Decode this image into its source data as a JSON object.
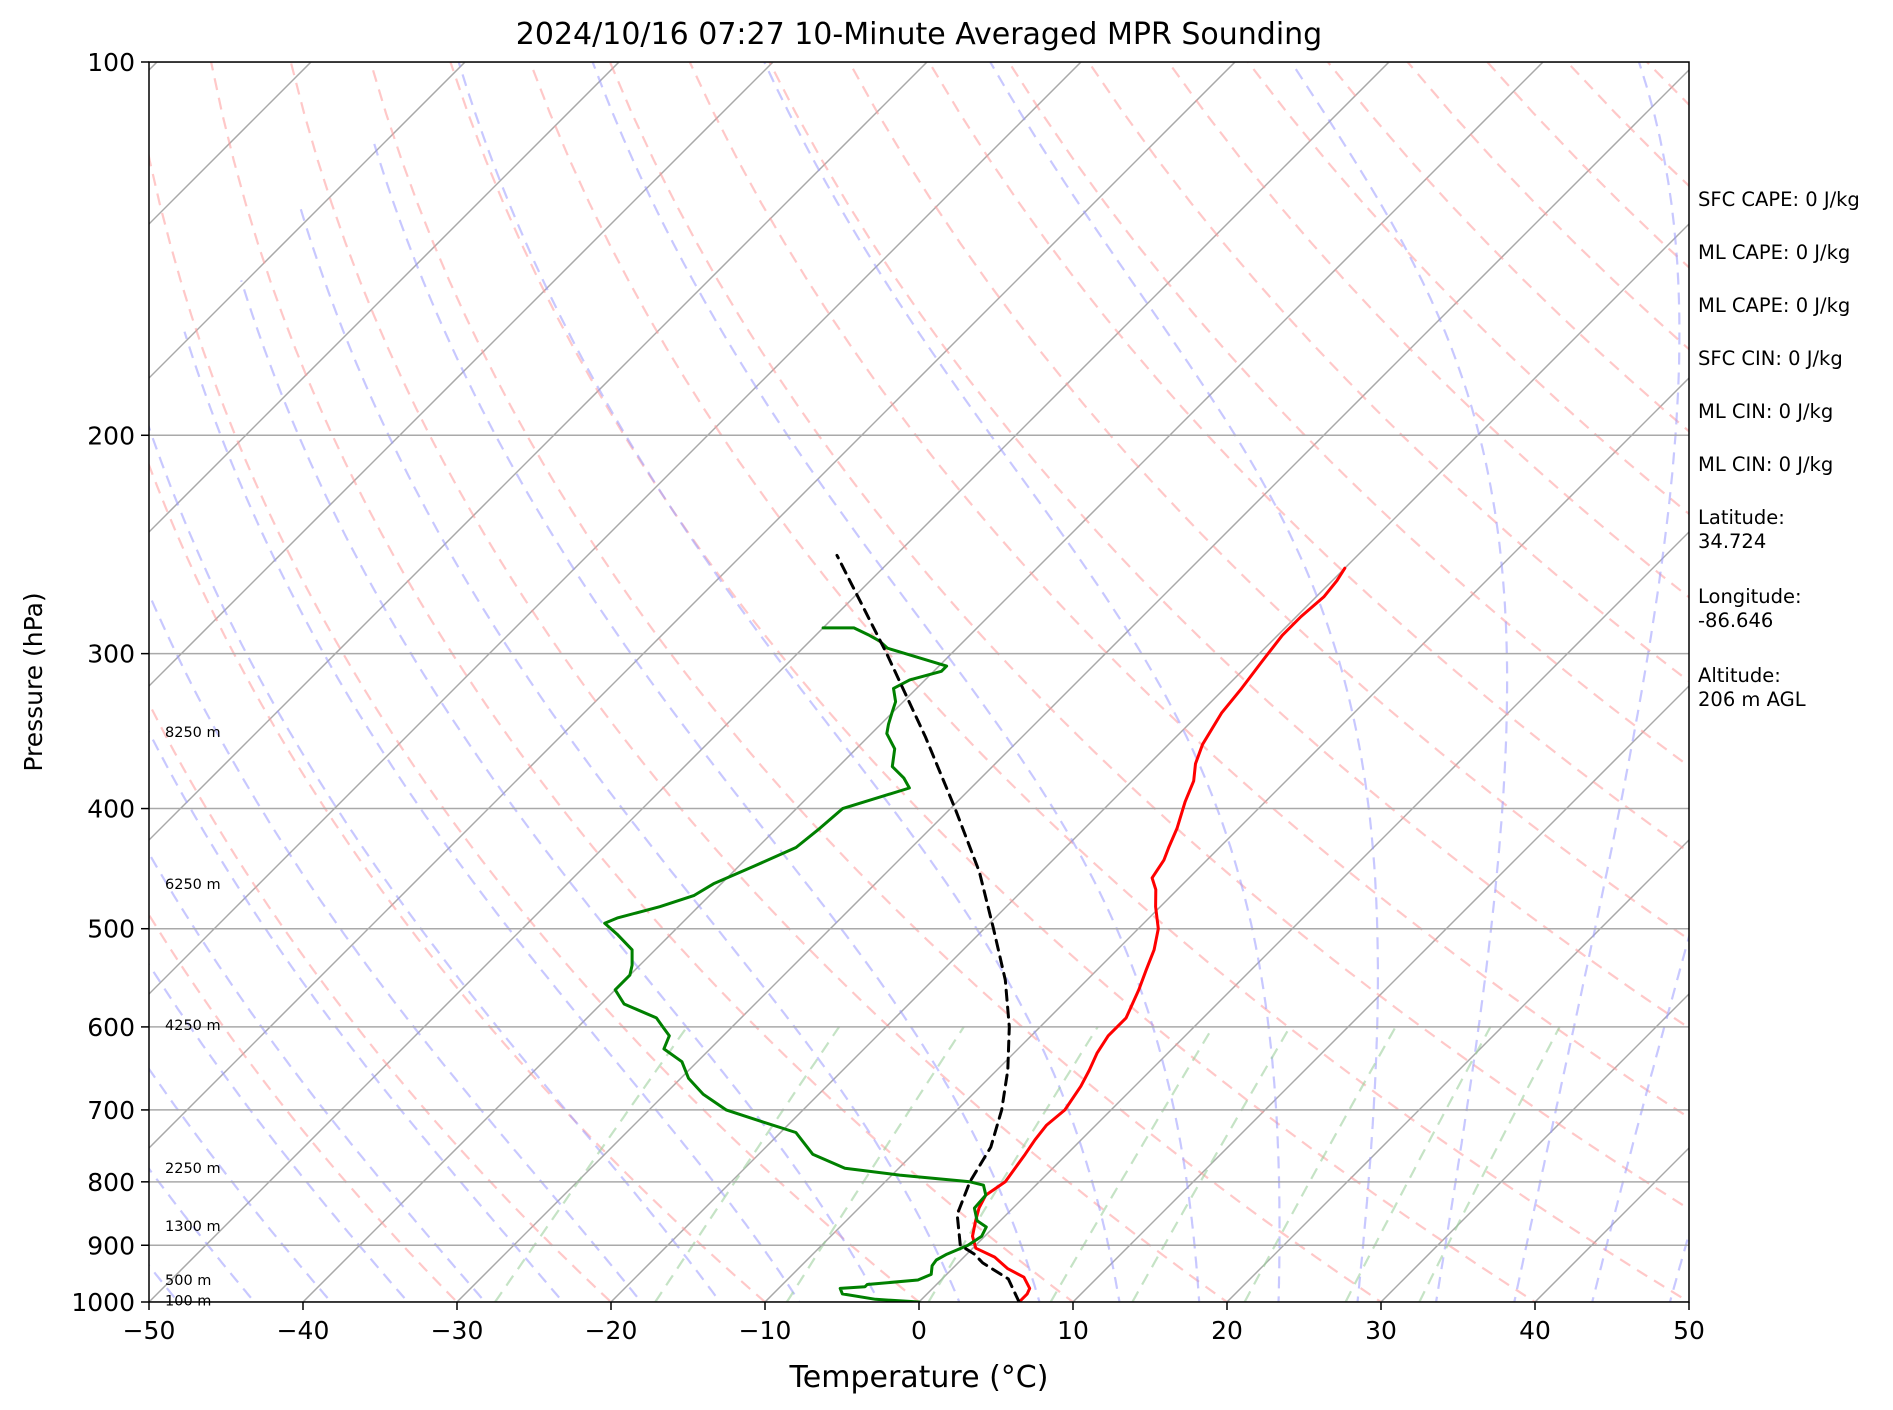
{
  "chart_data": {
    "type": "line",
    "title": "2024/10/16 07:27 10-Minute Averaged MPR Sounding",
    "xlabel": "Temperature (°C)",
    "ylabel": "Pressure (hPa)",
    "xlim": [
      -50,
      50
    ],
    "ylim": [
      1000,
      100
    ],
    "yscale": "log",
    "skew": "skew-T (isotherms slanted right with height)",
    "grid": true,
    "x_ticks": [
      "−50",
      "−40",
      "−30",
      "−20",
      "−10",
      "0",
      "10",
      "20",
      "30",
      "40",
      "50"
    ],
    "y_ticks": [
      "100",
      "200",
      "300",
      "400",
      "500",
      "600",
      "700",
      "800",
      "900",
      "1000"
    ],
    "colors": {
      "temperature": "#ff0000",
      "dewpoint": "#008000",
      "parcel": "#000000",
      "isotherm": "#a9a9a9",
      "dry_adiabat": "#ff9b9b",
      "moist_adiabat": "#9b9bff",
      "mixing_ratio": "#9fd09f"
    },
    "series": [
      {
        "name": "",
        "role": "temperature",
        "points": [
          [
            6.5,
            1000
          ],
          [
            6.5,
            985
          ],
          [
            6.3,
            975
          ],
          [
            5.2,
            955
          ],
          [
            3.6,
            940
          ],
          [
            2.0,
            920
          ],
          [
            0.2,
            905
          ],
          [
            -0.8,
            885
          ],
          [
            -1.6,
            860
          ],
          [
            -2.2,
            840
          ],
          [
            -2.6,
            820
          ],
          [
            -2.2,
            800
          ],
          [
            -2.7,
            760
          ],
          [
            -3.0,
            740
          ],
          [
            -3.2,
            720
          ],
          [
            -3.0,
            700
          ],
          [
            -3.5,
            670
          ],
          [
            -4.0,
            650
          ],
          [
            -4.6,
            630
          ],
          [
            -5.0,
            610
          ],
          [
            -5.0,
            590
          ],
          [
            -6.0,
            560
          ],
          [
            -6.8,
            540
          ],
          [
            -7.6,
            520
          ],
          [
            -8.7,
            500
          ],
          [
            -10.3,
            480
          ],
          [
            -11.4,
            465
          ],
          [
            -12.4,
            455
          ],
          [
            -12.8,
            440
          ],
          [
            -13.3,
            430
          ],
          [
            -14.0,
            415
          ],
          [
            -15.2,
            395
          ],
          [
            -16.0,
            380
          ],
          [
            -17.0,
            368
          ],
          [
            -17.8,
            355
          ],
          [
            -18.6,
            335
          ],
          [
            -18.9,
            320
          ],
          [
            -19.3,
            305
          ],
          [
            -19.7,
            290
          ],
          [
            -19.7,
            280
          ],
          [
            -19.5,
            270
          ],
          [
            -19.7,
            262
          ],
          [
            -20.0,
            256
          ]
        ]
      },
      {
        "name": "",
        "role": "dewpoint",
        "points": [
          [
            0,
            1000
          ],
          [
            -3.0,
            995
          ],
          [
            -5.5,
            985
          ],
          [
            -6.0,
            975
          ],
          [
            -4.5,
            972
          ],
          [
            -4.5,
            968
          ],
          [
            -1.5,
            960
          ],
          [
            -1.0,
            950
          ],
          [
            -1.5,
            935
          ],
          [
            -1.6,
            925
          ],
          [
            -1.3,
            915
          ],
          [
            -0.5,
            900
          ],
          [
            -0.2,
            885
          ],
          [
            -0.5,
            870
          ],
          [
            -1.5,
            860
          ],
          [
            -2.5,
            840
          ],
          [
            -2.6,
            820
          ],
          [
            -3.4,
            805
          ],
          [
            -4.5,
            800
          ],
          [
            -9.5,
            790
          ],
          [
            -13.5,
            780
          ],
          [
            -16.5,
            760
          ],
          [
            -19.0,
            730
          ],
          [
            -22.0,
            715
          ],
          [
            -25.0,
            700
          ],
          [
            -27.5,
            680
          ],
          [
            -29.5,
            660
          ],
          [
            -31.0,
            640
          ],
          [
            -33.0,
            625
          ],
          [
            -33.5,
            610
          ],
          [
            -34.5,
            600
          ],
          [
            -35.5,
            590
          ],
          [
            -38.5,
            575
          ],
          [
            -40.0,
            560
          ],
          [
            -40.0,
            545
          ],
          [
            -40.5,
            535
          ],
          [
            -41.5,
            520
          ],
          [
            -43.5,
            505
          ],
          [
            -45.0,
            495
          ],
          [
            -44.5,
            490
          ],
          [
            -42.5,
            480
          ],
          [
            -41.0,
            470
          ],
          [
            -40.5,
            460
          ],
          [
            -39.0,
            445
          ],
          [
            -37.5,
            430
          ],
          [
            -37.2,
            415
          ],
          [
            -37.0,
            400
          ],
          [
            -34.0,
            385
          ],
          [
            -35.0,
            378
          ],
          [
            -36.5,
            370
          ],
          [
            -37.5,
            358
          ],
          [
            -39.0,
            348
          ],
          [
            -39.5,
            342
          ],
          [
            -40.0,
            335
          ],
          [
            -40.5,
            328
          ],
          [
            -41.5,
            320
          ],
          [
            -41.0,
            315
          ],
          [
            -39.5,
            310
          ],
          [
            -39.5,
            307
          ],
          [
            -43.0,
            300
          ],
          [
            -44.5,
            297
          ],
          [
            -45.5,
            293
          ],
          [
            -46.5,
            290
          ],
          [
            -48.0,
            286
          ],
          [
            -50.0,
            286
          ]
        ]
      },
      {
        "name": "",
        "role": "parcel",
        "points": [
          [
            6.5,
            1000
          ],
          [
            4.3,
            958
          ],
          [
            1.6,
            930
          ],
          [
            0.5,
            915
          ],
          [
            -1.0,
            900
          ],
          [
            -3.2,
            850
          ],
          [
            -4.5,
            800
          ],
          [
            -5.4,
            750
          ],
          [
            -7.1,
            700
          ],
          [
            -9.3,
            650
          ],
          [
            -12.0,
            600
          ],
          [
            -15.3,
            550
          ],
          [
            -19.4,
            500
          ],
          [
            -24.0,
            450
          ],
          [
            -29.7,
            400
          ],
          [
            -36.3,
            350
          ],
          [
            -44.2,
            300
          ],
          [
            -53.8,
            250
          ]
        ]
      }
    ],
    "height_labels": [
      {
        "text": "8250 m",
        "p": 347
      },
      {
        "text": "6250 m",
        "p": 460
      },
      {
        "text": "4250 m",
        "p": 598
      },
      {
        "text": "2250 m",
        "p": 780
      },
      {
        "text": "1300 m",
        "p": 868
      },
      {
        "text": "500 m",
        "p": 960
      },
      {
        "text": "100 m",
        "p": 997
      }
    ]
  },
  "panel": {
    "sfc_cape": "SFC CAPE: 0 J/kg",
    "ml_cape_1": "ML CAPE: 0 J/kg",
    "ml_cape_2": "ML CAPE: 0 J/kg",
    "sfc_cin": "SFC CIN: 0 J/kg",
    "ml_cin_1": "ML CIN: 0 J/kg",
    "ml_cin_2": "ML CIN: 0 J/kg",
    "latitude_label": "Latitude:",
    "latitude_value": "34.724",
    "longitude_label": "Longitude:",
    "longitude_value": "-86.646",
    "altitude_label": "Altitude:",
    "altitude_value": "206 m AGL"
  }
}
